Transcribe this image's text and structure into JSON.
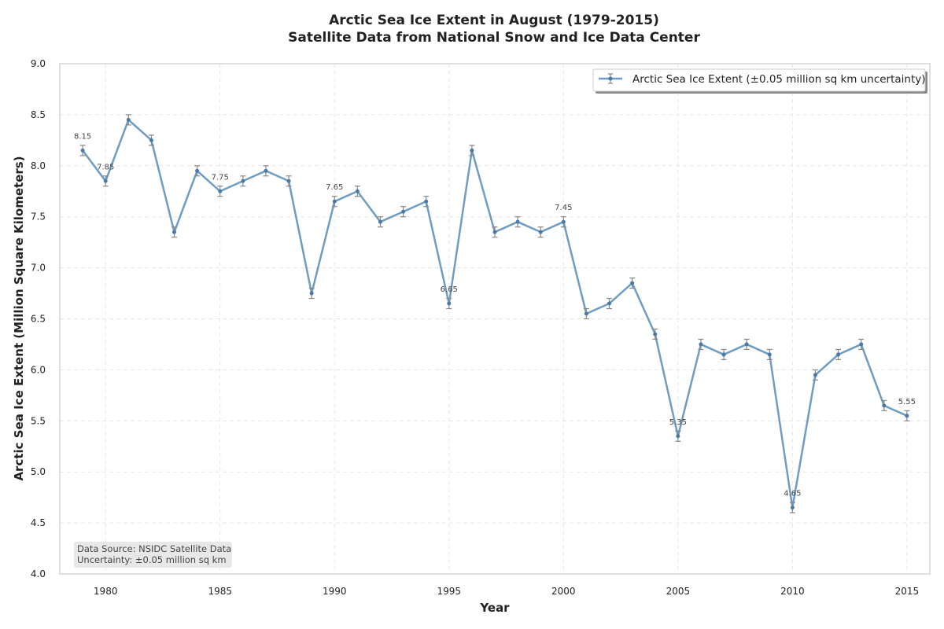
{
  "chart_data": {
    "type": "line",
    "title_line1": "Arctic Sea Ice Extent in August (1979-2015)",
    "title_line2": "Satellite Data from National Snow and Ice Data Center",
    "xlabel": "Year",
    "ylabel": "Arctic Sea Ice Extent (Million Square Kilometers)",
    "xlim": [
      1978,
      2016
    ],
    "ylim": [
      4.0,
      9.0
    ],
    "x_ticks": [
      1980,
      1985,
      1990,
      1995,
      2000,
      2005,
      2010,
      2015
    ],
    "y_ticks": [
      4.0,
      4.5,
      5.0,
      5.5,
      6.0,
      6.5,
      7.0,
      7.5,
      8.0,
      8.5,
      9.0
    ],
    "grid": true,
    "legend_position": "top-right",
    "series": [
      {
        "name": "Arctic Sea Ice Extent (±0.05 million sq km uncertainty)",
        "color": "#6f9dc2",
        "marker_color": "#4a7aa5",
        "error_color": "#888888",
        "uncertainty": 0.05,
        "x": [
          1979,
          1980,
          1981,
          1982,
          1983,
          1984,
          1985,
          1986,
          1987,
          1988,
          1989,
          1990,
          1991,
          1992,
          1993,
          1994,
          1995,
          1996,
          1997,
          1998,
          1999,
          2000,
          2001,
          2002,
          2003,
          2004,
          2005,
          2006,
          2007,
          2008,
          2009,
          2010,
          2011,
          2012,
          2013,
          2014,
          2015
        ],
        "y": [
          8.15,
          7.85,
          8.45,
          8.25,
          7.35,
          7.95,
          7.75,
          7.85,
          7.95,
          7.85,
          6.75,
          7.65,
          7.75,
          7.45,
          7.55,
          7.65,
          6.65,
          8.15,
          7.35,
          7.45,
          7.35,
          7.45,
          6.55,
          6.65,
          6.85,
          6.35,
          5.35,
          6.25,
          6.15,
          6.25,
          6.15,
          4.65,
          5.95,
          6.15,
          6.25,
          5.65,
          5.55
        ]
      }
    ],
    "annotations": [
      {
        "x": 1979,
        "y": 8.15,
        "text": "8.15"
      },
      {
        "x": 1980,
        "y": 7.85,
        "text": "7.85"
      },
      {
        "x": 1985,
        "y": 7.75,
        "text": "7.75"
      },
      {
        "x": 1990,
        "y": 7.65,
        "text": "7.65"
      },
      {
        "x": 1995,
        "y": 6.65,
        "text": "6.65"
      },
      {
        "x": 2000,
        "y": 7.45,
        "text": "7.45"
      },
      {
        "x": 2005,
        "y": 5.35,
        "text": "5.35"
      },
      {
        "x": 2010,
        "y": 4.65,
        "text": "4.65"
      },
      {
        "x": 2015,
        "y": 5.55,
        "text": "5.55"
      }
    ],
    "note_lines": [
      "Data Source: NSIDC Satellite Data",
      "Uncertainty: ±0.05 million sq km"
    ]
  }
}
